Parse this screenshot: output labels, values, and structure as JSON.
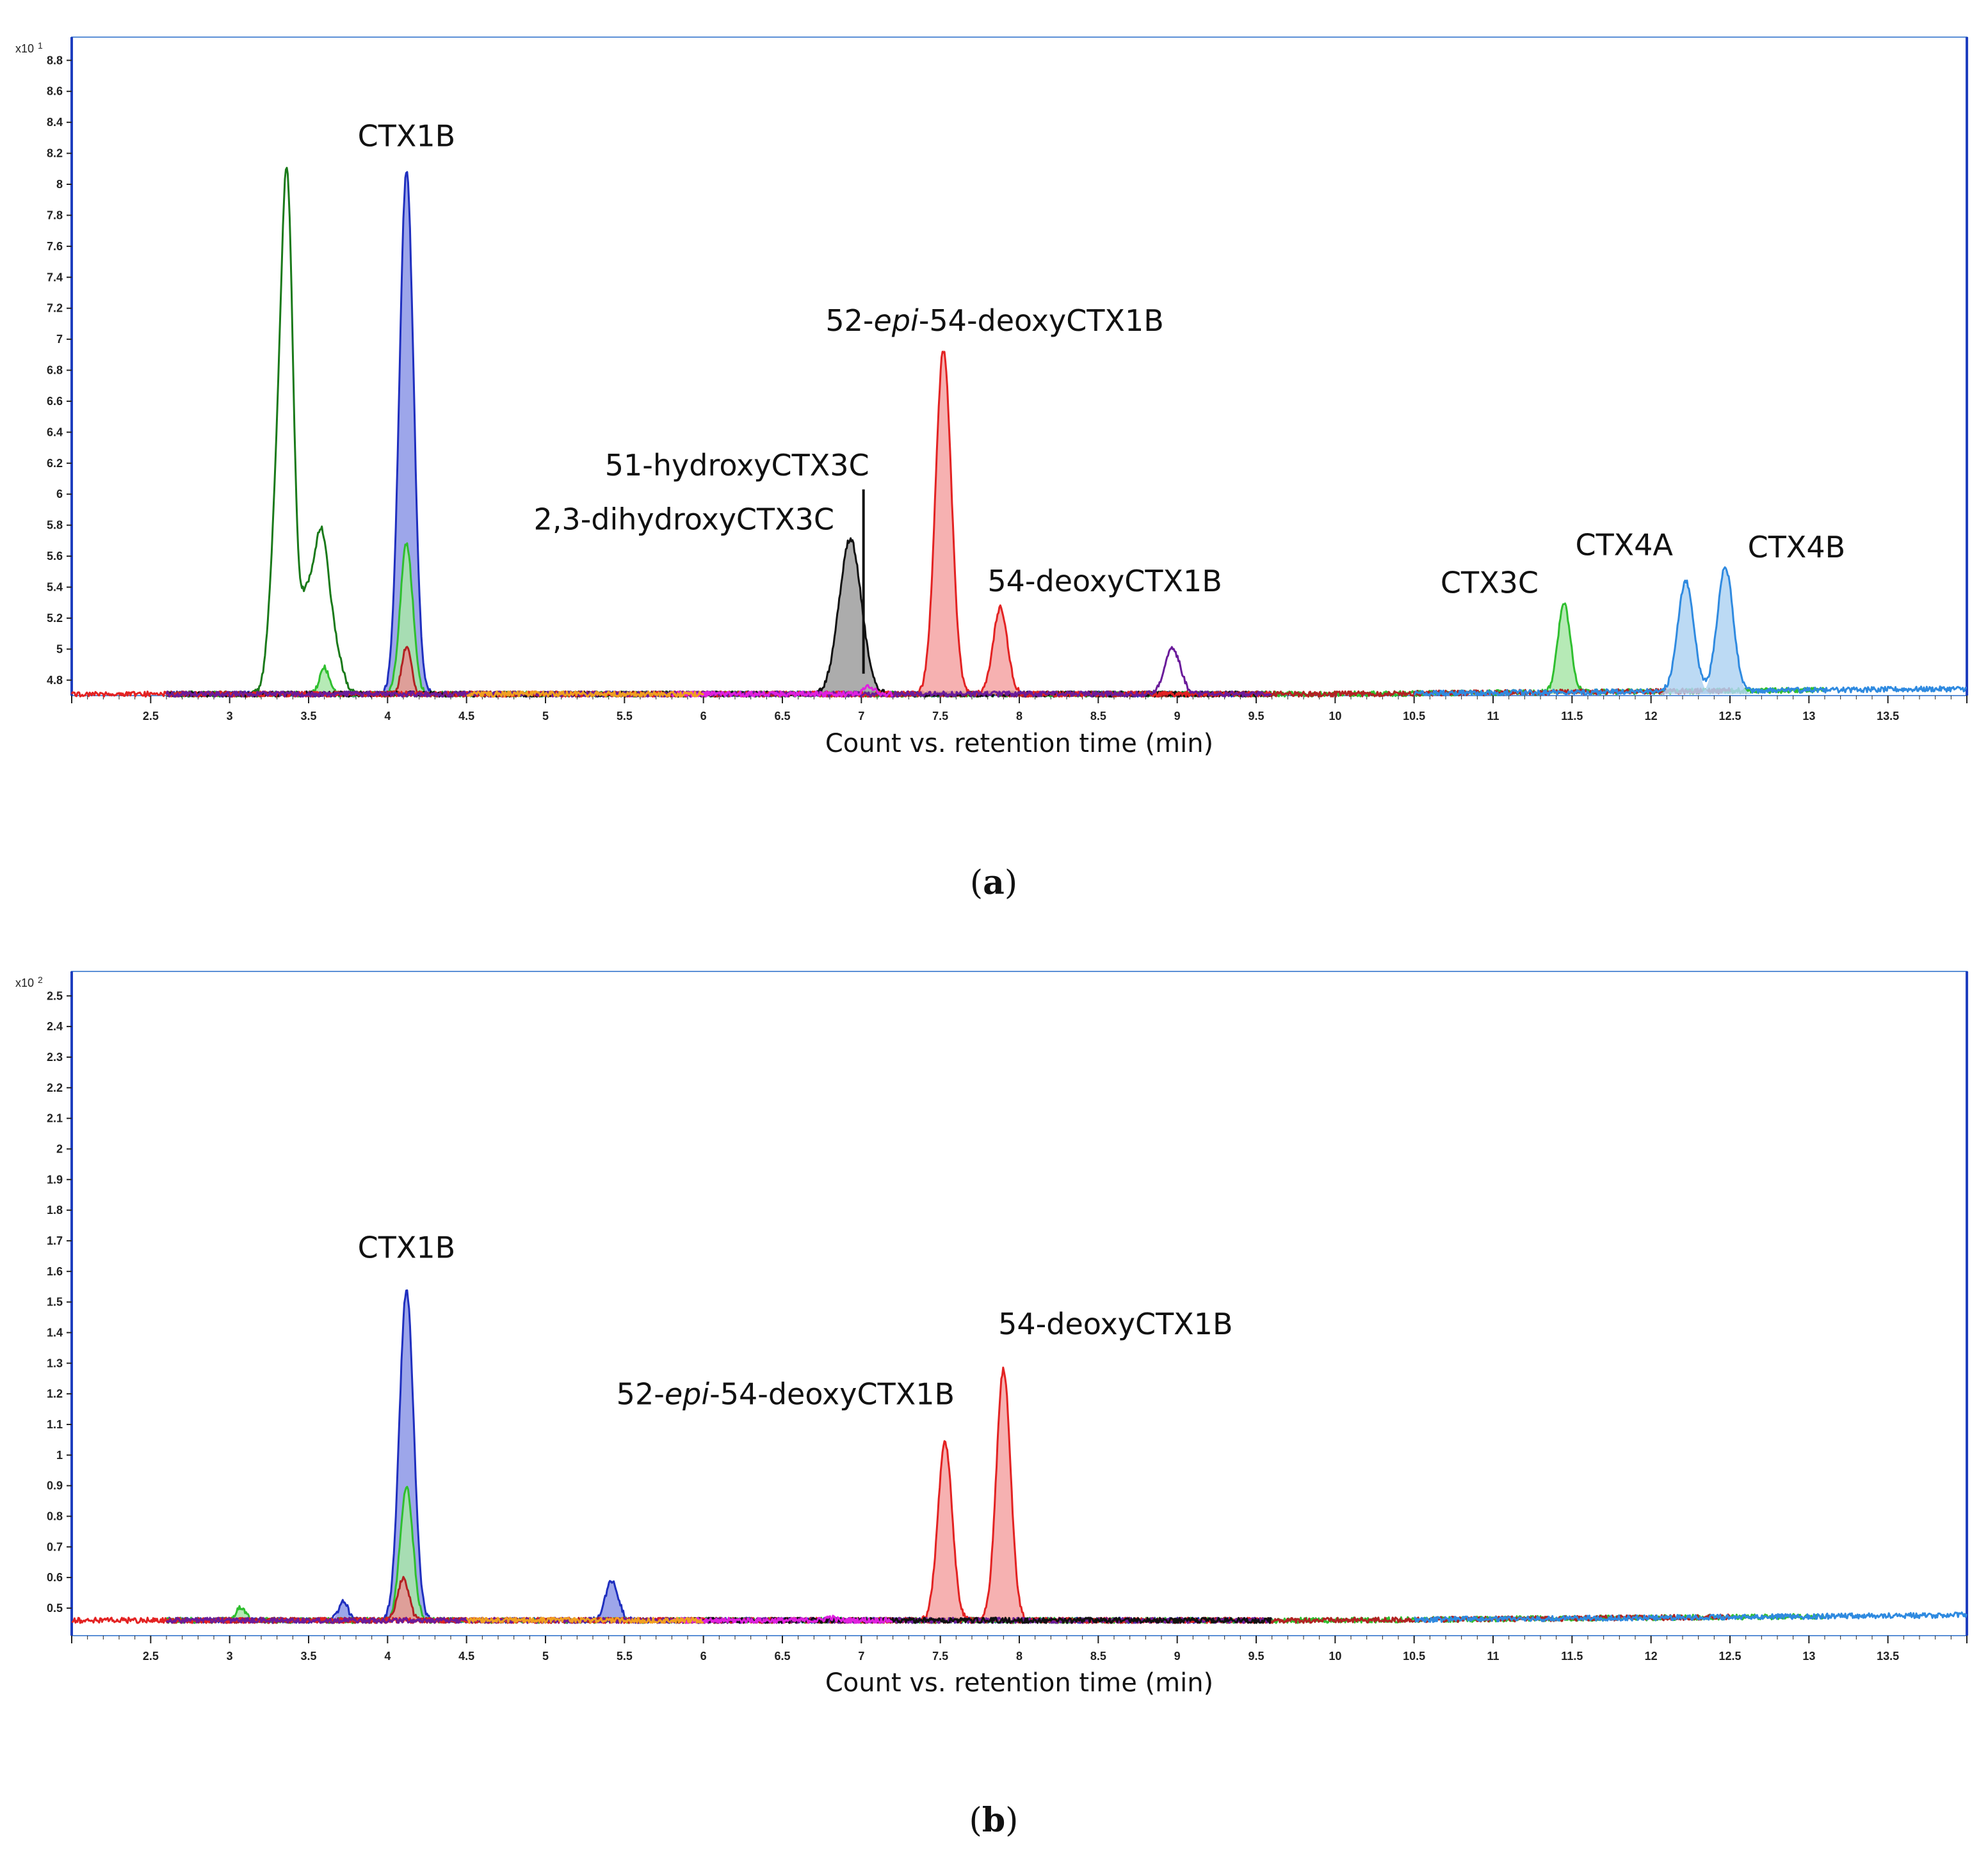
{
  "chart_data": [
    {
      "panel": "a",
      "type": "line",
      "multiplier": "x10",
      "multiplier_exp": "1",
      "xlabel": "Count vs. retention time (min)",
      "xlim": [
        2.0,
        14.0
      ],
      "ylim": [
        4.7,
        8.95
      ],
      "xticks": [
        "2.5",
        "3",
        "3.5",
        "4",
        "4.5",
        "5",
        "5.5",
        "6",
        "6.5",
        "7",
        "7.5",
        "8",
        "8.5",
        "9",
        "9.5",
        "10",
        "10.5",
        "11",
        "11.5",
        "12",
        "12.5",
        "13",
        "13.5"
      ],
      "yticks": [
        "4.8",
        "5",
        "5.2",
        "5.4",
        "5.6",
        "5.8",
        "6",
        "6.2",
        "6.4",
        "6.6",
        "6.8",
        "7",
        "7.2",
        "7.4",
        "7.6",
        "7.8",
        "8",
        "8.2",
        "8.4",
        "8.6",
        "8.8"
      ],
      "baseline": 4.71,
      "grid": false,
      "legend": "none",
      "series": [
        {
          "color": "#1f2fbf",
          "fill": "#8c96e6",
          "peaks": [
            [
              4.12,
              8.08,
              0.045
            ]
          ],
          "range": [
            2.6,
            9.6
          ]
        },
        {
          "color": "#2fbf2f",
          "fill": "#a9e6a9",
          "peaks": [
            [
              4.12,
              5.68,
              0.04
            ],
            [
              3.6,
              4.88,
              0.03
            ],
            [
              11.45,
              5.28,
              0.04
            ]
          ],
          "range": [
            2.6,
            13.1
          ]
        },
        {
          "color": "#1a7a1a",
          "fill": null,
          "peaks": [
            [
              3.37,
              7.02,
              0.035
            ],
            [
              3.32,
              6.3,
              0.05
            ],
            [
              3.58,
              5.62,
              0.045
            ],
            [
              3.48,
              5.3,
              0.05
            ],
            [
              3.66,
              5.0,
              0.05
            ]
          ],
          "range": [
            2.6,
            9.6
          ]
        },
        {
          "color": "#b22222",
          "fill": "#e89494",
          "peaks": [
            [
              4.12,
              5.02,
              0.03
            ]
          ],
          "range": [
            2.6,
            12.5
          ]
        },
        {
          "color": "#111111",
          "fill": "#9e9e9e",
          "peaks": [
            [
              6.93,
              5.71,
              0.07
            ]
          ],
          "range": [
            2.6,
            9.6
          ]
        },
        {
          "color": "#e32222",
          "fill": "#f5a3a3",
          "peaks": [
            [
              7.52,
              6.93,
              0.05
            ],
            [
              7.88,
              5.27,
              0.045
            ]
          ],
          "range": [
            2.0,
            9.6
          ]
        },
        {
          "color": "#6a1b9a",
          "fill": null,
          "peaks": [
            [
              8.97,
              5.0,
              0.05
            ]
          ],
          "range": [
            2.6,
            9.6
          ]
        },
        {
          "color": "#e020e0",
          "fill": null,
          "peaks": [
            [
              7.05,
              4.76,
              0.03
            ]
          ],
          "range": [
            5.8,
            7.2
          ]
        },
        {
          "color": "#f0a020",
          "fill": null,
          "peaks": [],
          "range": [
            4.5,
            6.0
          ]
        },
        {
          "color": "#2f8ae0",
          "fill": "#b0d3f2",
          "peaks": [
            [
              12.22,
              5.42,
              0.05
            ],
            [
              12.47,
              5.51,
              0.05
            ]
          ],
          "range": [
            10.5,
            14.0
          ]
        }
      ],
      "annotations": [
        {
          "text": "CTX1B",
          "x": 4.12,
          "y": 8.08
        },
        {
          "text_pre": "52-",
          "text_it": "epi",
          "text_post": "-54-deoxyCTX1B",
          "x": 7.52,
          "y": 6.93
        },
        {
          "text": "51-hydroxyCTX3C",
          "x": 7.05,
          "y": 4.8,
          "leader": true
        },
        {
          "text": "2,3-dihydroxyCTX3C",
          "x": 6.93,
          "y": 5.71
        },
        {
          "text": "54-deoxyCTX1B",
          "x": 7.88,
          "y": 5.27
        },
        {
          "text": "CTX3C",
          "x": 11.45,
          "y": 5.28
        },
        {
          "text": "CTX4A",
          "x": 12.22,
          "y": 5.42
        },
        {
          "text": "CTX4B",
          "x": 12.47,
          "y": 5.51
        }
      ]
    },
    {
      "panel": "b",
      "type": "line",
      "multiplier": "x10",
      "multiplier_exp": "2",
      "xlabel": "Count vs. retention time (min)",
      "xlim": [
        2.0,
        14.0
      ],
      "ylim": [
        0.41,
        2.58
      ],
      "xticks": [
        "2.5",
        "3",
        "3.5",
        "4",
        "4.5",
        "5",
        "5.5",
        "6",
        "6.5",
        "7",
        "7.5",
        "8",
        "8.5",
        "9",
        "9.5",
        "10",
        "10.5",
        "11",
        "11.5",
        "12",
        "12.5",
        "13",
        "13.5"
      ],
      "yticks": [
        "0.5",
        "0.6",
        "0.7",
        "0.8",
        "0.9",
        "1",
        "1.1",
        "1.2",
        "1.3",
        "1.4",
        "1.5",
        "1.6",
        "1.7",
        "1.8",
        "1.9",
        "2",
        "2.1",
        "2.2",
        "2.3",
        "2.4",
        "2.5"
      ],
      "baseline": 0.46,
      "grid": false,
      "legend": "none",
      "series": [
        {
          "color": "#1f2fbf",
          "fill": "#8c96e6",
          "peaks": [
            [
              4.12,
              1.54,
              0.045
            ],
            [
              5.42,
              0.59,
              0.04
            ],
            [
              3.72,
              0.52,
              0.03
            ]
          ],
          "range": [
            2.6,
            9.6
          ]
        },
        {
          "color": "#2fbf2f",
          "fill": "#a9e6a9",
          "peaks": [
            [
              4.12,
              0.9,
              0.04
            ],
            [
              3.07,
              0.5,
              0.03
            ]
          ],
          "range": [
            2.6,
            13.1
          ]
        },
        {
          "color": "#b22222",
          "fill": "#e89494",
          "peaks": [
            [
              4.1,
              0.6,
              0.035
            ]
          ],
          "range": [
            2.6,
            12.5
          ]
        },
        {
          "color": "#e32222",
          "fill": "#f5a3a3",
          "peaks": [
            [
              7.53,
              1.04,
              0.045
            ],
            [
              7.9,
              1.28,
              0.045
            ]
          ],
          "range": [
            2.0,
            9.6
          ]
        },
        {
          "color": "#6a1b9a",
          "fill": null,
          "peaks": [],
          "range": [
            2.6,
            9.6
          ]
        },
        {
          "color": "#111111",
          "fill": null,
          "peaks": [],
          "range": [
            5.8,
            9.6
          ]
        },
        {
          "color": "#e020e0",
          "fill": null,
          "peaks": [
            [
              6.8,
              0.47,
              0.03
            ]
          ],
          "range": [
            5.8,
            7.2
          ]
        },
        {
          "color": "#f0a020",
          "fill": null,
          "peaks": [],
          "range": [
            4.5,
            6.0
          ]
        },
        {
          "color": "#2f8ae0",
          "fill": null,
          "peaks": [],
          "range": [
            10.5,
            14.0
          ]
        }
      ],
      "annotations": [
        {
          "text": "CTX1B",
          "x": 4.12,
          "y": 1.54
        },
        {
          "text_pre": "52-",
          "text_it": "epi",
          "text_post": "-54-deoxyCTX1B",
          "x": 7.53,
          "y": 1.04
        },
        {
          "text": "54-deoxyCTX1B",
          "x": 7.9,
          "y": 1.28
        }
      ]
    }
  ],
  "panel_labels": {
    "a": "a",
    "b": "b"
  }
}
